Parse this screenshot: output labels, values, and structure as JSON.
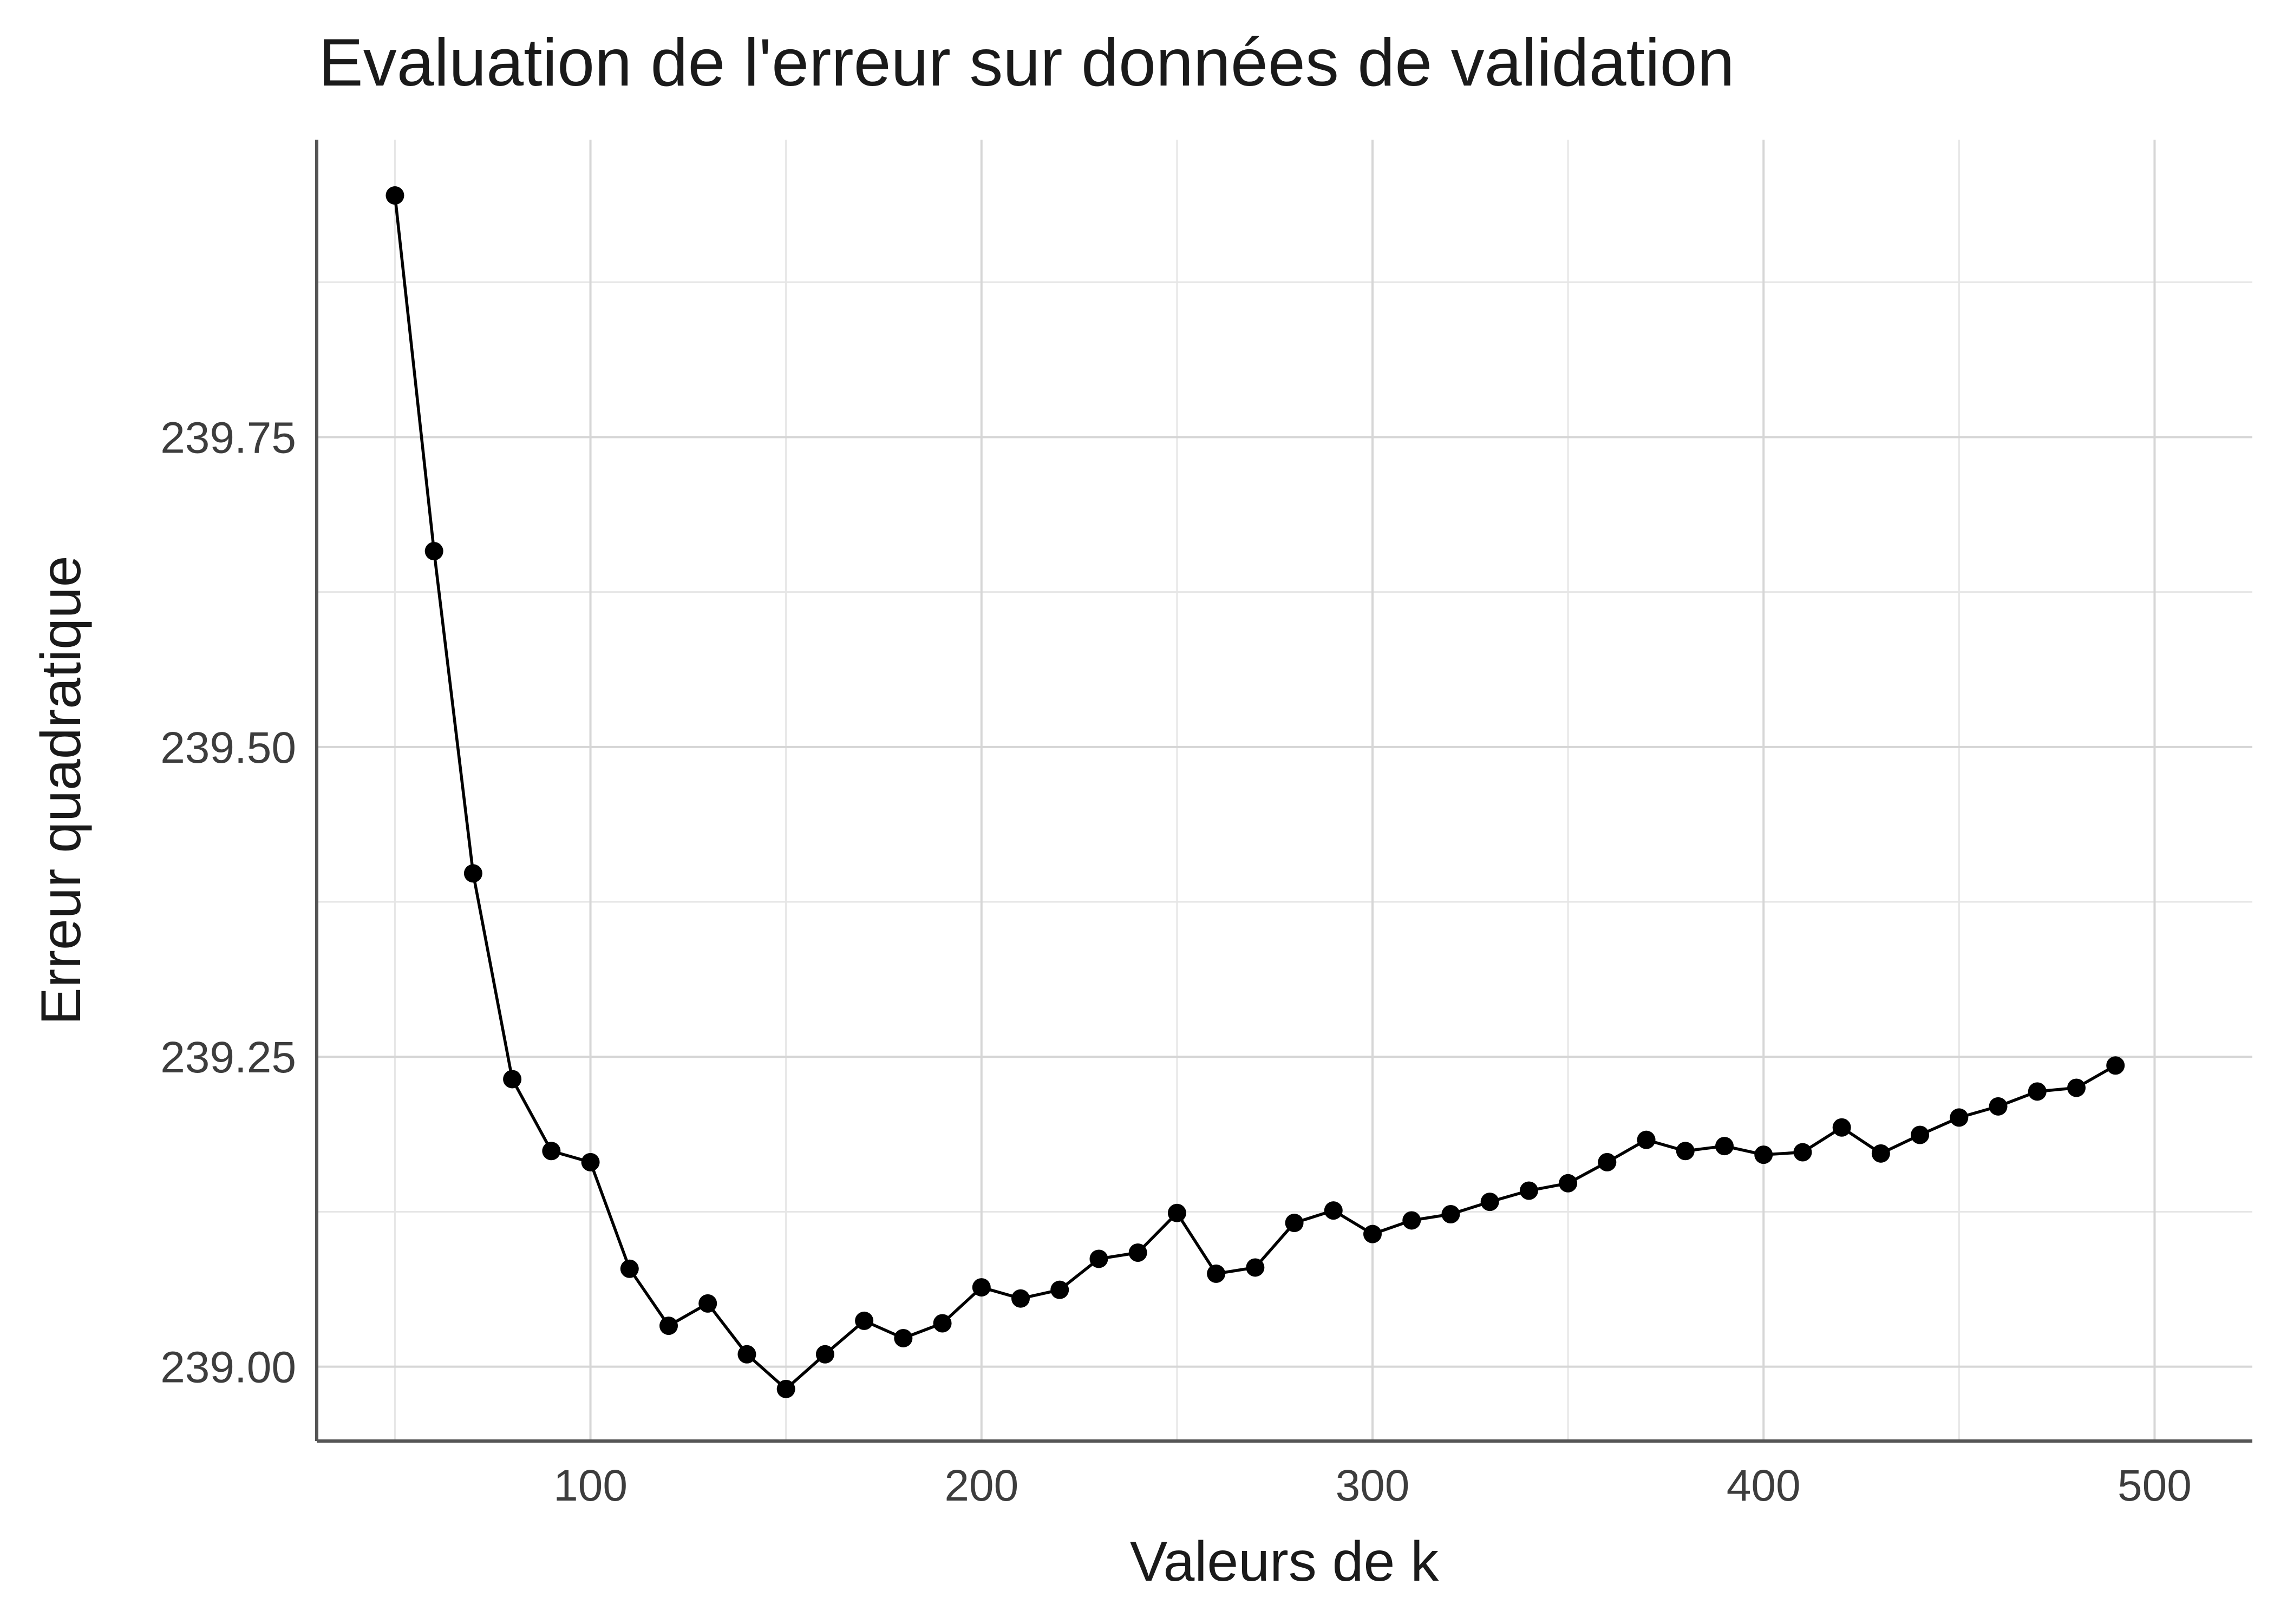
{
  "chart_data": {
    "type": "line",
    "title": "Evaluation de l'erreur sur données de validation",
    "xlabel": "Valeurs de k",
    "ylabel": "Erreur quadratique",
    "xlim": [
      30,
      525
    ],
    "ylim": [
      238.94,
      239.99
    ],
    "x_ticks": [
      100,
      200,
      300,
      400,
      500
    ],
    "x_tick_labels": [
      "100",
      "200",
      "300",
      "400",
      "500"
    ],
    "y_ticks": [
      239.0,
      239.25,
      239.5,
      239.75
    ],
    "y_tick_labels": [
      "239.00",
      "239.25",
      "239.50",
      "239.75"
    ],
    "grid": true,
    "series": [
      {
        "color": "#000000",
        "x": [
          50,
          60,
          70,
          80,
          90,
          100,
          110,
          120,
          130,
          140,
          150,
          160,
          170,
          180,
          190,
          200,
          210,
          220,
          230,
          240,
          250,
          260,
          270,
          280,
          290,
          300,
          310,
          320,
          330,
          340,
          350,
          360,
          370,
          380,
          390,
          400,
          410,
          420,
          430,
          440,
          450,
          460,
          470,
          480,
          490
        ],
        "y": [
          239.945,
          239.658,
          239.398,
          239.232,
          239.174,
          239.165,
          239.079,
          239.033,
          239.051,
          239.01,
          238.982,
          239.01,
          239.037,
          239.023,
          239.035,
          239.064,
          239.055,
          239.062,
          239.087,
          239.092,
          239.124,
          239.075,
          239.08,
          239.116,
          239.126,
          239.107,
          239.118,
          239.123,
          239.133,
          239.142,
          239.148,
          239.165,
          239.183,
          239.174,
          239.178,
          239.171,
          239.173,
          239.193,
          239.172,
          239.187,
          239.201,
          239.21,
          239.222,
          239.225,
          239.243
        ]
      }
    ]
  }
}
